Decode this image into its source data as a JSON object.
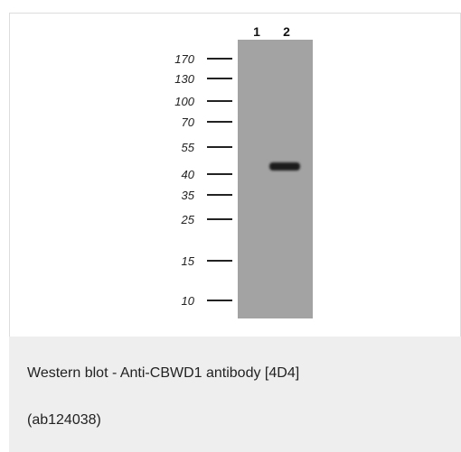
{
  "figure": {
    "lane_labels": [
      "1",
      "2"
    ],
    "marker_labels": [
      "170",
      "130",
      "100",
      "70",
      "55",
      "40",
      "35",
      "25",
      "15",
      "10"
    ],
    "colors": {
      "membrane": "#a3a3a3",
      "band": "#1a1a1a",
      "marker_line": "#222222"
    }
  },
  "caption": {
    "line1": "Western blot - Anti-CBWD1 antibody [4D4]",
    "line2": "(ab124038)"
  }
}
